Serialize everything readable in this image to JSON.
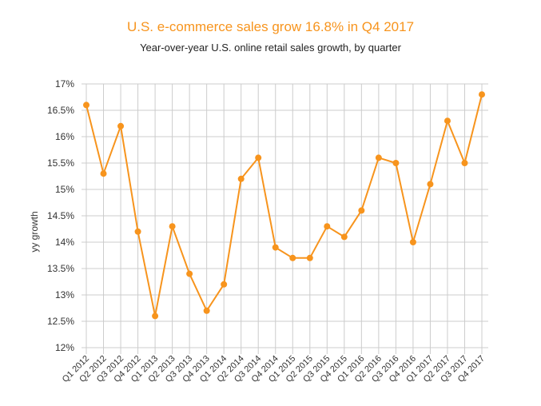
{
  "header": {
    "title": "U.S. e-commerce sales grow 16.8% in Q4 2017",
    "subtitle": "Year-over-year U.S. online retail sales growth, by quarter"
  },
  "colors": {
    "accent": "#f7941d",
    "line": "#f7941d",
    "grid": "#cccccc",
    "text": "#333333"
  },
  "chart_data": {
    "type": "line",
    "title": "U.S. e-commerce sales grow 16.8% in Q4 2017",
    "subtitle": "Year-over-year U.S. online retail sales growth, by quarter",
    "xlabel": "",
    "ylabel": "yy growth",
    "ylim": [
      12,
      17
    ],
    "yticks": [
      12,
      12.5,
      13,
      13.5,
      14,
      14.5,
      15,
      15.5,
      16,
      16.5,
      17
    ],
    "ytick_labels": [
      "12%",
      "12.5%",
      "13%",
      "13.5%",
      "14%",
      "14.5%",
      "15%",
      "15.5%",
      "16%",
      "16.5%",
      "17%"
    ],
    "grid": true,
    "legend": "none",
    "categories": [
      "Q1 2012",
      "Q2 2012",
      "Q3 2012",
      "Q4 2012",
      "Q1 2013",
      "Q2 2013",
      "Q3 2013",
      "Q4 2013",
      "Q1 2014",
      "Q2 2014",
      "Q3 2014",
      "Q4 2014",
      "Q1 2015",
      "Q2 2015",
      "Q3 2015",
      "Q4 2015",
      "Q1 2016",
      "Q2 2016",
      "Q3 2016",
      "Q4 2016",
      "Q1 2017",
      "Q2 2017",
      "Q3 2017",
      "Q4 2017"
    ],
    "series": [
      {
        "values": [
          16.6,
          15.3,
          16.2,
          14.2,
          12.6,
          14.3,
          13.4,
          12.7,
          13.2,
          15.2,
          15.6,
          13.9,
          13.7,
          13.7,
          14.3,
          14.1,
          14.6,
          15.6,
          15.5,
          14.0,
          15.1,
          16.3,
          15.5,
          16.8
        ]
      }
    ]
  }
}
